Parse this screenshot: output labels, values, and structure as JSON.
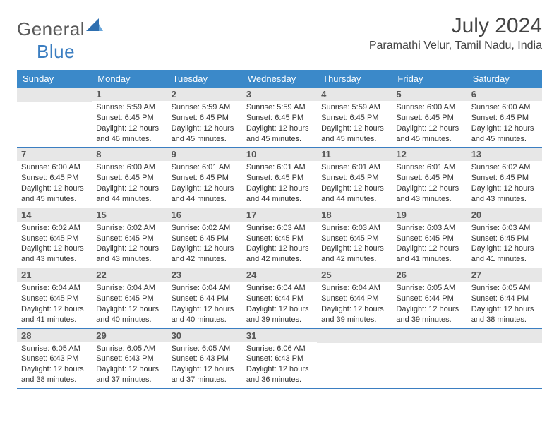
{
  "brand": {
    "part1": "General",
    "part2": "Blue"
  },
  "title": "July 2024",
  "location": "Paramathi Velur, Tamil Nadu, India",
  "colors": {
    "header_bg": "#3b89c9",
    "header_fg": "#ffffff",
    "daynum_bg": "#e7e7e7",
    "row_border": "#3b7ec1",
    "logo_gray": "#5a5a5a",
    "logo_blue": "#3b7ec1",
    "page_bg": "#ffffff",
    "text": "#333333"
  },
  "weekdays": [
    "Sunday",
    "Monday",
    "Tuesday",
    "Wednesday",
    "Thursday",
    "Friday",
    "Saturday"
  ],
  "weeks": [
    [
      {
        "day": null
      },
      {
        "day": 1,
        "sunrise": "5:59 AM",
        "sunset": "6:45 PM",
        "daylight": "12 hours and 46 minutes."
      },
      {
        "day": 2,
        "sunrise": "5:59 AM",
        "sunset": "6:45 PM",
        "daylight": "12 hours and 45 minutes."
      },
      {
        "day": 3,
        "sunrise": "5:59 AM",
        "sunset": "6:45 PM",
        "daylight": "12 hours and 45 minutes."
      },
      {
        "day": 4,
        "sunrise": "5:59 AM",
        "sunset": "6:45 PM",
        "daylight": "12 hours and 45 minutes."
      },
      {
        "day": 5,
        "sunrise": "6:00 AM",
        "sunset": "6:45 PM",
        "daylight": "12 hours and 45 minutes."
      },
      {
        "day": 6,
        "sunrise": "6:00 AM",
        "sunset": "6:45 PM",
        "daylight": "12 hours and 45 minutes."
      }
    ],
    [
      {
        "day": 7,
        "sunrise": "6:00 AM",
        "sunset": "6:45 PM",
        "daylight": "12 hours and 45 minutes."
      },
      {
        "day": 8,
        "sunrise": "6:00 AM",
        "sunset": "6:45 PM",
        "daylight": "12 hours and 44 minutes."
      },
      {
        "day": 9,
        "sunrise": "6:01 AM",
        "sunset": "6:45 PM",
        "daylight": "12 hours and 44 minutes."
      },
      {
        "day": 10,
        "sunrise": "6:01 AM",
        "sunset": "6:45 PM",
        "daylight": "12 hours and 44 minutes."
      },
      {
        "day": 11,
        "sunrise": "6:01 AM",
        "sunset": "6:45 PM",
        "daylight": "12 hours and 44 minutes."
      },
      {
        "day": 12,
        "sunrise": "6:01 AM",
        "sunset": "6:45 PM",
        "daylight": "12 hours and 43 minutes."
      },
      {
        "day": 13,
        "sunrise": "6:02 AM",
        "sunset": "6:45 PM",
        "daylight": "12 hours and 43 minutes."
      }
    ],
    [
      {
        "day": 14,
        "sunrise": "6:02 AM",
        "sunset": "6:45 PM",
        "daylight": "12 hours and 43 minutes."
      },
      {
        "day": 15,
        "sunrise": "6:02 AM",
        "sunset": "6:45 PM",
        "daylight": "12 hours and 43 minutes."
      },
      {
        "day": 16,
        "sunrise": "6:02 AM",
        "sunset": "6:45 PM",
        "daylight": "12 hours and 42 minutes."
      },
      {
        "day": 17,
        "sunrise": "6:03 AM",
        "sunset": "6:45 PM",
        "daylight": "12 hours and 42 minutes."
      },
      {
        "day": 18,
        "sunrise": "6:03 AM",
        "sunset": "6:45 PM",
        "daylight": "12 hours and 42 minutes."
      },
      {
        "day": 19,
        "sunrise": "6:03 AM",
        "sunset": "6:45 PM",
        "daylight": "12 hours and 41 minutes."
      },
      {
        "day": 20,
        "sunrise": "6:03 AM",
        "sunset": "6:45 PM",
        "daylight": "12 hours and 41 minutes."
      }
    ],
    [
      {
        "day": 21,
        "sunrise": "6:04 AM",
        "sunset": "6:45 PM",
        "daylight": "12 hours and 41 minutes."
      },
      {
        "day": 22,
        "sunrise": "6:04 AM",
        "sunset": "6:45 PM",
        "daylight": "12 hours and 40 minutes."
      },
      {
        "day": 23,
        "sunrise": "6:04 AM",
        "sunset": "6:44 PM",
        "daylight": "12 hours and 40 minutes."
      },
      {
        "day": 24,
        "sunrise": "6:04 AM",
        "sunset": "6:44 PM",
        "daylight": "12 hours and 39 minutes."
      },
      {
        "day": 25,
        "sunrise": "6:04 AM",
        "sunset": "6:44 PM",
        "daylight": "12 hours and 39 minutes."
      },
      {
        "day": 26,
        "sunrise": "6:05 AM",
        "sunset": "6:44 PM",
        "daylight": "12 hours and 39 minutes."
      },
      {
        "day": 27,
        "sunrise": "6:05 AM",
        "sunset": "6:44 PM",
        "daylight": "12 hours and 38 minutes."
      }
    ],
    [
      {
        "day": 28,
        "sunrise": "6:05 AM",
        "sunset": "6:43 PM",
        "daylight": "12 hours and 38 minutes."
      },
      {
        "day": 29,
        "sunrise": "6:05 AM",
        "sunset": "6:43 PM",
        "daylight": "12 hours and 37 minutes."
      },
      {
        "day": 30,
        "sunrise": "6:05 AM",
        "sunset": "6:43 PM",
        "daylight": "12 hours and 37 minutes."
      },
      {
        "day": 31,
        "sunrise": "6:06 AM",
        "sunset": "6:43 PM",
        "daylight": "12 hours and 36 minutes."
      },
      {
        "day": null
      },
      {
        "day": null
      },
      {
        "day": null
      }
    ]
  ],
  "labels": {
    "sunrise_prefix": "Sunrise: ",
    "sunset_prefix": "Sunset: ",
    "daylight_prefix": "Daylight: "
  }
}
